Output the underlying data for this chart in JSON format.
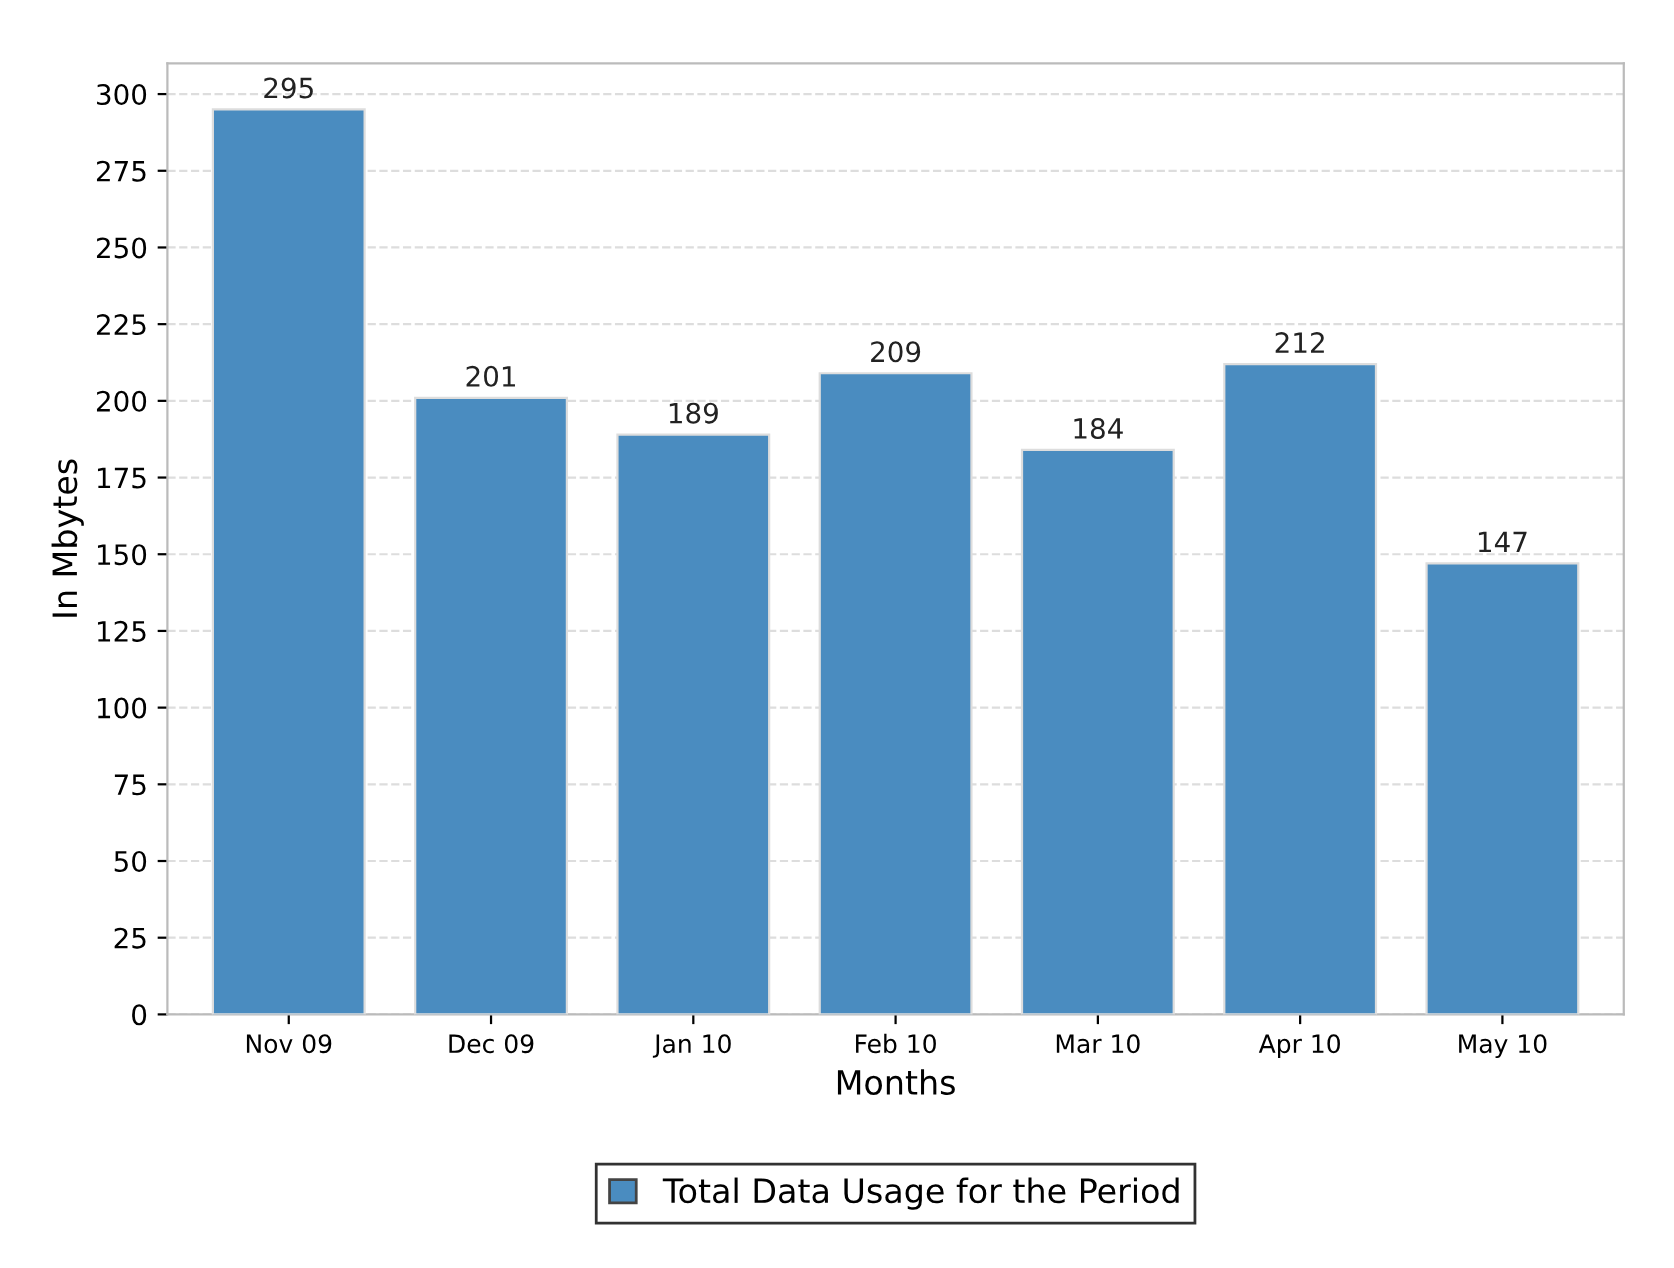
{
  "chart_data": {
    "type": "bar",
    "xlabel": "Months",
    "ylabel": "In Mbytes",
    "categories": [
      "Nov 09",
      "Dec 09",
      "Jan 10",
      "Feb 10",
      "Mar 10",
      "Apr 10",
      "May 10"
    ],
    "series": [
      {
        "name": "Total Data Usage for the Period",
        "color": "#4a8cc0",
        "values": [
          295,
          201,
          189,
          209,
          184,
          212,
          147
        ]
      }
    ],
    "ylim": [
      0,
      310
    ],
    "yticks": [
      0,
      25,
      50,
      75,
      100,
      125,
      150,
      175,
      200,
      225,
      250,
      275,
      300
    ],
    "grid": "y",
    "legend": "bottom",
    "data_labels": true
  }
}
